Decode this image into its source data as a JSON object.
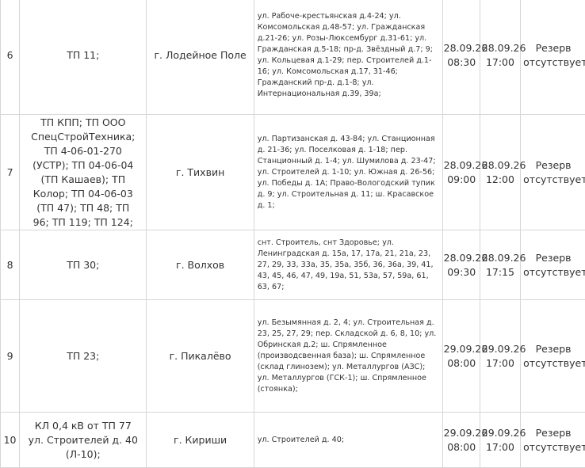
{
  "rows": [
    {
      "num": "6",
      "tp": [
        "ТП 11;"
      ],
      "city": "г. Лодейное Поле",
      "streets": "ул. Рабоче-крестьянская д.4-24; ул. Комсомольская д.48-57; ул. Гражданская д.21-26; ул. Розы-Люксембург д.31-61; ул. Гражданская д.5-18; пр-д. Звёздный д.7; 9; ул. Кольцевая д.1-29; пер. Строителей д.1-16; ул. Комсомольская д.17, 31-46; Гражданский пр-д. д.1-8; ул. Интернациональная д.39, 39а;",
      "start_date": "28.09.26",
      "start_time": "08:30",
      "end_date": "28.09.26",
      "end_time": "17:00",
      "note": "Резерв отсутствует"
    },
    {
      "num": "7",
      "tp": [
        "ТП КПП; ТП ООО",
        "СпецСтройТехника;",
        "ТП 4-06-01-270",
        "(УСТР); ТП 04-06-04",
        "(ТП Кашаев); ТП",
        "Колор; ТП 04-06-03",
        "(ТП 47); ТП 48; ТП",
        "96; ТП 119; ТП 124;"
      ],
      "city": "г. Тихвин",
      "streets": "ул. Партизанская д. 43-84; ул. Станционная д. 21-36; ул. Поселковая д. 1-18; пер. Станционный д. 1-4; ул. Шумилова д. 23-47; ул. Строителей д. 1-10; ул. Южная д. 26-56; ул. Победы д. 1А; Право-Вологодский тупик д. 9; ул. Строительная д. 11; ш. Красавское д. 1;",
      "start_date": "28.09.26",
      "start_time": "09:00",
      "end_date": "28.09.26",
      "end_time": "12:00",
      "note": "Резерв отсутствует"
    },
    {
      "num": "8",
      "tp": [
        "ТП 30;"
      ],
      "city": "г. Волхов",
      "streets": "снт. Строитель, снт Здоровье; ул. Ленинградская д. 15а, 17, 17а, 21, 21а, 23, 27, 29, 33, 33а, 35, 35а, 35б, 36, 36а, 39, 41, 43, 45, 46, 47, 49, 19а, 51, 53а, 57, 59а, 61, 63, 67;",
      "start_date": "28.09.26",
      "start_time": "09:30",
      "end_date": "28.09.26",
      "end_time": "17:15",
      "note": "Резерв отсутствует"
    },
    {
      "num": "9",
      "tp": [
        "ТП 23;"
      ],
      "city": "г. Пикалёво",
      "streets": "ул. Безымянная д. 2, 4; ул. Строительная д. 23, 25, 27, 29; пер. Складской д. 6, 8, 10; ул. Обринская д.2; ш. Спрямленное (производсвенная база); ш. Спрямленное (склад глинозем); ул. Металлургов (АЗС); ул. Металлургов (ГСК-1); ш. Спрямленное (стоянка);",
      "start_date": "29.09.26",
      "start_time": "08:00",
      "end_date": "29.09.26",
      "end_time": "17:00",
      "note": "Резерв отсутствует"
    },
    {
      "num": "10",
      "tp": [
        "КЛ 0,4 кВ от ТП 77",
        "ул. Строителей д. 40",
        "(Л-10);"
      ],
      "city": "г. Кириши",
      "streets": "ул. Строителей д. 40;",
      "start_date": "29.09.26",
      "start_time": "08:00",
      "end_date": "29.09.26",
      "end_time": "17:00",
      "note": "Резерв отсутствует"
    }
  ]
}
